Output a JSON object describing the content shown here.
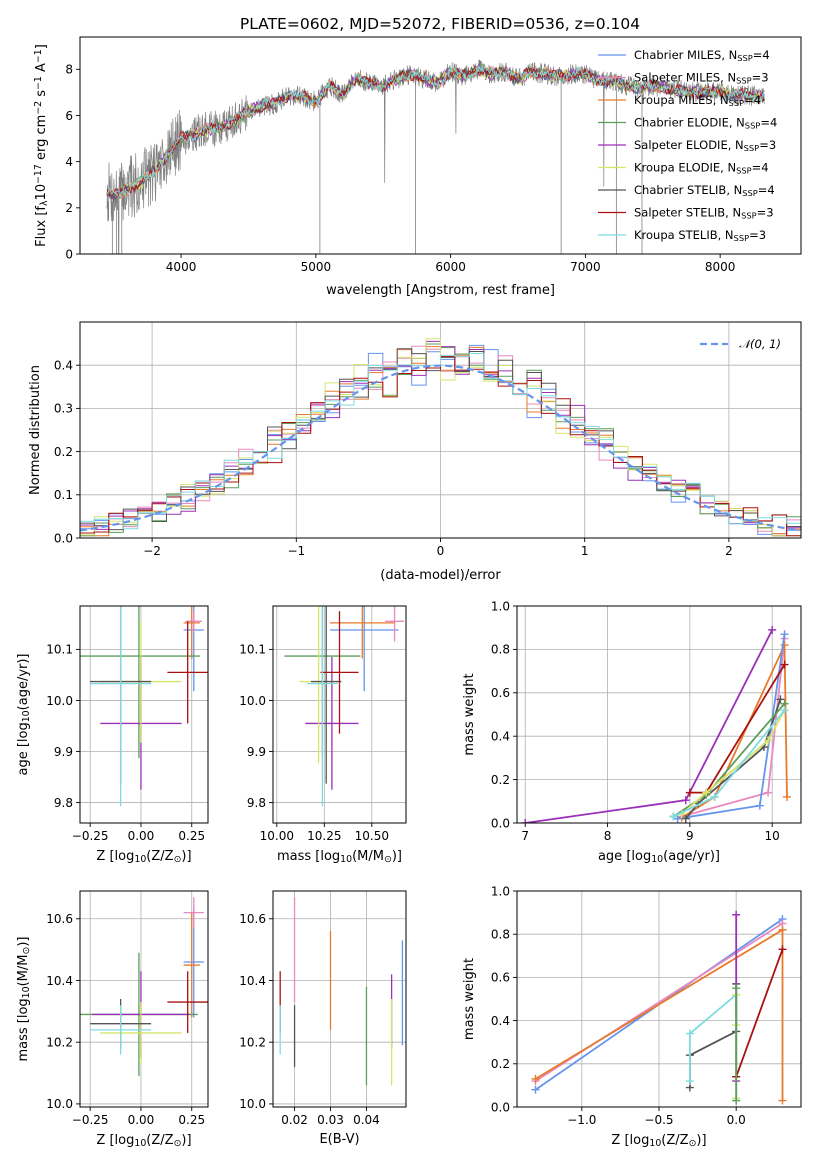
{
  "figure_title": "PLATE=0602, MJD=52072, FIBERID=0536, z=0.104",
  "colors": {
    "cornflower": "#6495ed",
    "darkorange": "#e87a2b",
    "violet": "#9b30b8",
    "khaki": "#d8e36a",
    "darkgray": "#555555",
    "darkred": "#aa1111",
    "cyan": "#7fdbe0",
    "pink": "#e889bf",
    "green": "#5c9e5c"
  },
  "chart_data": [
    {
      "id": "spectrum",
      "type": "line",
      "xlabel": "wavelength [Angstrom, rest frame]",
      "ylabel_main": "Flux [f",
      "ylabel_sub": "λ",
      "ylabel_rest": "10",
      "ylabel_exp": "−17",
      "ylabel_units": " erg cm",
      "ylabel_exp2": "−2",
      "ylabel_units2": " s",
      "ylabel_exp3": "−1",
      "ylabel_units3": " A",
      "ylabel_exp4": "−1",
      "ylabel_close": "]",
      "xlim": [
        3250,
        8600
      ],
      "ylim": [
        0,
        9.4
      ],
      "xticks": [
        4000,
        5000,
        6000,
        7000,
        8000
      ],
      "yticks": [
        0,
        2,
        4,
        6,
        8
      ],
      "legend": [
        {
          "base": "Chabrier MILES, N",
          "sub": "SSP",
          "tail": "=4",
          "color": "#6495ed"
        },
        {
          "base": "Salpeter MILES, N",
          "sub": "SSP",
          "tail": "=3",
          "color": "#e889bf"
        },
        {
          "base": "Kroupa MILES, N",
          "sub": "SSP",
          "tail": "=4",
          "color": "#e87a2b"
        },
        {
          "base": "Chabrier ELODIE, N",
          "sub": "SSP",
          "tail": "=4",
          "color": "#5c9e5c"
        },
        {
          "base": "Salpeter ELODIE, N",
          "sub": "SSP",
          "tail": "=3",
          "color": "#9b30b8"
        },
        {
          "base": "Kroupa ELODIE, N",
          "sub": "SSP",
          "tail": "=4",
          "color": "#d8e36a"
        },
        {
          "base": "Chabrier STELIB, N",
          "sub": "SSP",
          "tail": "=4",
          "color": "#555555"
        },
        {
          "base": "Salpeter STELIB, N",
          "sub": "SSP",
          "tail": "=3",
          "color": "#aa1111"
        },
        {
          "base": "Kroupa STELIB, N",
          "sub": "SSP",
          "tail": "=3",
          "color": "#7fdbe0"
        }
      ],
      "model_curve": {
        "x": [
          3450,
          3500,
          3600,
          3700,
          3800,
          3900,
          4000,
          4100,
          4200,
          4300,
          4400,
          4500,
          4600,
          4700,
          4800,
          4900,
          5000,
          5100,
          5200,
          5300,
          5400,
          5500,
          5600,
          5700,
          5800,
          5900,
          6000,
          6100,
          6200,
          6300,
          6400,
          6500,
          6600,
          6700,
          6800,
          6900,
          7000,
          7100,
          7200,
          7300,
          7400,
          7500,
          7600,
          7700,
          7800,
          7900,
          8000,
          8100,
          8200,
          8300
        ],
        "y": [
          2.7,
          2.5,
          2.8,
          3.1,
          3.6,
          4.3,
          5.0,
          5.2,
          5.4,
          5.5,
          5.8,
          6.2,
          6.4,
          6.5,
          6.9,
          6.8,
          6.6,
          7.3,
          6.9,
          7.6,
          7.4,
          7.3,
          7.6,
          7.8,
          7.6,
          7.4,
          7.9,
          7.7,
          8.0,
          7.8,
          7.9,
          7.6,
          7.9,
          7.8,
          7.7,
          7.8,
          7.8,
          7.5,
          7.5,
          7.3,
          7.2,
          7.3,
          7.2,
          7.1,
          7.0,
          7.0,
          7.0,
          6.9,
          6.9,
          6.8
        ]
      }
    },
    {
      "id": "residuals",
      "type": "step",
      "xlabel": "(data-model)/error",
      "ylabel": "Normed distribution",
      "xlim": [
        -2.5,
        2.5
      ],
      "ylim": [
        0,
        0.5
      ],
      "xticks": [
        -2,
        -1,
        0,
        1,
        2
      ],
      "xtick_labels": [
        "−2",
        "−1",
        "0",
        "1",
        "2"
      ],
      "yticks": [
        0.0,
        0.1,
        0.2,
        0.3,
        0.4
      ],
      "ytick_labels": [
        "0.0",
        "0.1",
        "0.2",
        "0.3",
        "0.4"
      ],
      "bin_width": 0.1,
      "legend_text": "𝒩(0, 1)",
      "gaussian": {
        "mu": 0,
        "sigma": 1,
        "color": "#6495ed"
      }
    },
    {
      "id": "age-vs-Z",
      "type": "errorbar",
      "xlabel": "Z [log",
      "xlabel_sub": "10",
      "xlabel_tail": "(Z/Z",
      "xlabel_sub2": "⊙",
      "xlabel_close": ")]",
      "ylabel": "age  [log",
      "ylabel_sub": "10",
      "ylabel_tail": "(age/yr)]",
      "xlim": [
        -0.3,
        0.33
      ],
      "ylim": [
        9.76,
        10.185
      ],
      "xticks": [
        -0.25,
        0.0,
        0.25
      ],
      "xtick_labels": [
        "−0.25",
        "0.00",
        "0.25"
      ],
      "yticks": [
        9.8,
        9.9,
        10.0,
        10.1
      ],
      "ytick_labels": [
        "9.8",
        "9.9",
        "10.0",
        "10.1"
      ],
      "points": [
        {
          "x": 0.26,
          "y": 10.138,
          "xerr": 0.05,
          "yerr": 0.12,
          "color": "#6495ed"
        },
        {
          "x": 0.26,
          "y": 10.155,
          "xerr": 0.04,
          "yerr": 0.02,
          "color": "#e889bf"
        },
        {
          "x": 0.25,
          "y": 10.152,
          "xerr": 0.04,
          "yerr": 0.07,
          "color": "#e87a2b"
        },
        {
          "x": -0.01,
          "y": 10.087,
          "xerr": 0.3,
          "yerr": 0.2,
          "color": "#5c9e5c"
        },
        {
          "x": 0.0,
          "y": 9.955,
          "xerr": 0.2,
          "yerr": 0.13,
          "color": "#9b30b8"
        },
        {
          "x": 0.0,
          "y": 10.037,
          "xerr": 0.2,
          "yerr": 0.12,
          "color": "#d8e36a"
        },
        {
          "x": -0.1,
          "y": 10.037,
          "xerr": 0.15,
          "yerr": 0.2,
          "color": "#555555"
        },
        {
          "x": 0.23,
          "y": 10.055,
          "xerr": 0.1,
          "yerr": 0.1,
          "color": "#aa1111"
        },
        {
          "x": -0.1,
          "y": 10.033,
          "xerr": 0.15,
          "yerr": 0.24,
          "color": "#7fdbe0"
        }
      ]
    },
    {
      "id": "age-vs-mass",
      "type": "errorbar",
      "xlabel": "mass [log",
      "xlabel_sub": "10",
      "xlabel_tail": "(M/M",
      "xlabel_sub2": "⊙",
      "xlabel_close": ")]",
      "xlim": [
        9.98,
        10.68
      ],
      "ylim": [
        9.76,
        10.185
      ],
      "xticks": [
        10.0,
        10.25,
        10.5
      ],
      "xtick_labels": [
        "10.00",
        "10.25",
        "10.50"
      ],
      "yticks": [
        9.8,
        9.9,
        10.0,
        10.1
      ],
      "ytick_labels": [
        "9.8",
        "9.9",
        "10.0",
        "10.1"
      ],
      "points": [
        {
          "x": 10.46,
          "y": 10.138,
          "xerr": 0.18,
          "yerr": 0.12,
          "color": "#6495ed"
        },
        {
          "x": 10.62,
          "y": 10.155,
          "xerr": 0.05,
          "yerr": 0.04,
          "color": "#e889bf"
        },
        {
          "x": 10.45,
          "y": 10.152,
          "xerr": 0.17,
          "yerr": 0.07,
          "color": "#e87a2b"
        },
        {
          "x": 10.24,
          "y": 10.087,
          "xerr": 0.2,
          "yerr": 0.2,
          "color": "#5c9e5c"
        },
        {
          "x": 10.29,
          "y": 9.955,
          "xerr": 0.14,
          "yerr": 0.13,
          "color": "#9b30b8"
        },
        {
          "x": 10.22,
          "y": 10.037,
          "xerr": 0.1,
          "yerr": 0.16,
          "color": "#d8e36a"
        },
        {
          "x": 10.26,
          "y": 10.037,
          "xerr": 0.08,
          "yerr": 0.2,
          "color": "#555555"
        },
        {
          "x": 10.33,
          "y": 10.055,
          "xerr": 0.1,
          "yerr": 0.12,
          "color": "#aa1111"
        },
        {
          "x": 10.24,
          "y": 10.033,
          "xerr": 0.08,
          "yerr": 0.24,
          "color": "#7fdbe0"
        }
      ]
    },
    {
      "id": "mass-weight-vs-age",
      "type": "line",
      "xlabel": "age  [log",
      "xlabel_sub": "10",
      "xlabel_tail": "(age/yr)]",
      "ylabel": "mass weight",
      "xlim": [
        6.9,
        10.35
      ],
      "ylim": [
        0,
        1.0
      ],
      "xticks": [
        7,
        8,
        9,
        10
      ],
      "yticks": [
        0.0,
        0.2,
        0.4,
        0.6,
        0.8,
        1.0
      ],
      "ytick_labels": [
        "0.0",
        "0.2",
        "0.4",
        "0.6",
        "0.8",
        "1.0"
      ],
      "series": [
        {
          "color": "#9b30b8",
          "x": [
            7.0,
            8.95,
            10.0
          ],
          "y": [
            0.0,
            0.105,
            0.89
          ]
        },
        {
          "color": "#e889bf",
          "x": [
            8.9,
            9.95,
            10.15
          ],
          "y": [
            0.03,
            0.14,
            0.85
          ]
        },
        {
          "color": "#e87a2b",
          "x": [
            8.9,
            9.3,
            10.15,
            10.18
          ],
          "y": [
            0.025,
            0.12,
            0.82,
            0.12
          ]
        },
        {
          "color": "#6495ed",
          "x": [
            8.85,
            9.85,
            10.15
          ],
          "y": [
            0.02,
            0.08,
            0.87
          ]
        },
        {
          "color": "#aa1111",
          "x": [
            9.0,
            9.2,
            10.15
          ],
          "y": [
            0.14,
            0.14,
            0.73
          ]
        },
        {
          "color": "#555555",
          "x": [
            8.95,
            9.1,
            9.9,
            10.1
          ],
          "y": [
            0.02,
            0.09,
            0.35,
            0.57
          ]
        },
        {
          "color": "#5c9e5c",
          "x": [
            8.8,
            9.2,
            10.15
          ],
          "y": [
            0.03,
            0.13,
            0.55
          ]
        },
        {
          "color": "#d8e36a",
          "x": [
            8.9,
            9.2,
            9.95,
            10.15
          ],
          "y": [
            0.04,
            0.14,
            0.38,
            0.52
          ]
        },
        {
          "color": "#7fdbe0",
          "x": [
            8.8,
            9.3,
            10.15
          ],
          "y": [
            0.03,
            0.12,
            0.52
          ]
        }
      ]
    },
    {
      "id": "mass-vs-Z",
      "type": "errorbar",
      "xlabel": "Z [log",
      "xlabel_sub": "10",
      "xlabel_tail": "(Z/Z",
      "xlabel_sub2": "⊙",
      "xlabel_close": ")]",
      "ylabel": "mass [log",
      "ylabel_sub": "10",
      "ylabel_tail": "(M/M",
      "ylabel_sub2": "⊙",
      "ylabel_close": ")]",
      "xlim": [
        -0.3,
        0.33
      ],
      "ylim": [
        9.99,
        10.69
      ],
      "xticks": [
        -0.25,
        0.0,
        0.25
      ],
      "xtick_labels": [
        "−0.25",
        "0.00",
        "0.25"
      ],
      "yticks": [
        10.0,
        10.2,
        10.4,
        10.6
      ],
      "ytick_labels": [
        "10.0",
        "10.2",
        "10.4",
        "10.6"
      ],
      "points": [
        {
          "x": 0.26,
          "y": 10.46,
          "xerr": 0.05,
          "yerr": 0.18,
          "color": "#6495ed"
        },
        {
          "x": 0.26,
          "y": 10.62,
          "xerr": 0.05,
          "yerr": 0.05,
          "color": "#e889bf"
        },
        {
          "x": 0.25,
          "y": 10.45,
          "xerr": 0.04,
          "yerr": 0.17,
          "color": "#e87a2b"
        },
        {
          "x": -0.01,
          "y": 10.29,
          "xerr": 0.29,
          "yerr": 0.2,
          "color": "#5c9e5c"
        },
        {
          "x": 0.0,
          "y": 10.29,
          "xerr": 0.24,
          "yerr": 0.14,
          "color": "#9b30b8"
        },
        {
          "x": 0.0,
          "y": 10.23,
          "xerr": 0.2,
          "yerr": 0.1,
          "color": "#d8e36a"
        },
        {
          "x": -0.1,
          "y": 10.26,
          "xerr": 0.15,
          "yerr": 0.08,
          "color": "#555555"
        },
        {
          "x": 0.23,
          "y": 10.33,
          "xerr": 0.1,
          "yerr": 0.1,
          "color": "#aa1111"
        },
        {
          "x": -0.1,
          "y": 10.24,
          "xerr": 0.15,
          "yerr": 0.08,
          "color": "#7fdbe0"
        }
      ]
    },
    {
      "id": "mass-vs-ebv",
      "type": "errorbar",
      "xlabel": "E(B-V)",
      "xlim": [
        0.014,
        0.051
      ],
      "ylim": [
        9.99,
        10.69
      ],
      "xticks": [
        0.02,
        0.03,
        0.04
      ],
      "xtick_labels": [
        "0.02",
        "0.03",
        "0.04"
      ],
      "yticks": [
        10.0,
        10.2,
        10.4,
        10.6
      ],
      "ytick_labels": [
        "10.0",
        "10.2",
        "10.4",
        "10.6"
      ],
      "points": [
        {
          "x": 0.05,
          "y": 10.36,
          "xerr": 0,
          "yerr": 0.17,
          "color": "#6495ed"
        },
        {
          "x": 0.02,
          "y": 10.5,
          "xerr": 0,
          "yerr": 0.17,
          "color": "#e889bf"
        },
        {
          "x": 0.03,
          "y": 10.4,
          "xerr": 0,
          "yerr": 0.16,
          "color": "#e87a2b"
        },
        {
          "x": 0.04,
          "y": 10.22,
          "xerr": 0,
          "yerr": 0.16,
          "color": "#5c9e5c"
        },
        {
          "x": 0.047,
          "y": 10.3,
          "xerr": 0,
          "yerr": 0.12,
          "color": "#9b30b8"
        },
        {
          "x": 0.047,
          "y": 10.2,
          "xerr": 0,
          "yerr": 0.14,
          "color": "#d8e36a"
        },
        {
          "x": 0.02,
          "y": 10.22,
          "xerr": 0,
          "yerr": 0.1,
          "color": "#555555"
        },
        {
          "x": 0.016,
          "y": 10.33,
          "xerr": 0,
          "yerr": 0.1,
          "color": "#aa1111"
        },
        {
          "x": 0.016,
          "y": 10.24,
          "xerr": 0,
          "yerr": 0.08,
          "color": "#7fdbe0"
        }
      ]
    },
    {
      "id": "mass-weight-vs-Z",
      "type": "line",
      "xlabel": "Z [log",
      "xlabel_sub": "10",
      "xlabel_tail": "(Z/Z",
      "xlabel_sub2": "⊙",
      "xlabel_close": ")]",
      "ylabel": "mass weight",
      "xlim": [
        -1.42,
        0.42
      ],
      "ylim": [
        0,
        1.0
      ],
      "xticks": [
        -1.0,
        -0.5,
        0.0
      ],
      "xtick_labels": [
        "−1.0",
        "−0.5",
        "0.0"
      ],
      "yticks": [
        0.0,
        0.2,
        0.4,
        0.6,
        0.8,
        1.0
      ],
      "ytick_labels": [
        "0.0",
        "0.2",
        "0.4",
        "0.6",
        "0.8",
        "1.0"
      ],
      "series": [
        {
          "color": "#6495ed",
          "x": [
            -1.3,
            0.3
          ],
          "y": [
            0.08,
            0.87
          ]
        },
        {
          "color": "#e889bf",
          "x": [
            -1.3,
            0.3
          ],
          "y": [
            0.12,
            0.85
          ]
        },
        {
          "color": "#e87a2b",
          "x": [
            -1.3,
            0.3,
            0.3
          ],
          "y": [
            0.13,
            0.82,
            0.03
          ]
        },
        {
          "color": "#555555",
          "x": [
            -0.3,
            -0.3,
            0.0,
            0.0
          ],
          "y": [
            0.09,
            0.24,
            0.35,
            0.57
          ]
        },
        {
          "color": "#7fdbe0",
          "x": [
            -0.3,
            -0.3,
            0.0,
            0.0
          ],
          "y": [
            0.12,
            0.34,
            0.52,
            0.03
          ]
        },
        {
          "color": "#9b30b8",
          "x": [
            0.0,
            0.0
          ],
          "y": [
            0.12,
            0.89
          ]
        },
        {
          "color": "#d8e36a",
          "x": [
            0.0,
            0.0,
            0.0
          ],
          "y": [
            0.04,
            0.52,
            0.38
          ]
        },
        {
          "color": "#aa1111",
          "x": [
            0.0,
            0.3
          ],
          "y": [
            0.14,
            0.73
          ]
        },
        {
          "color": "#5c9e5c",
          "x": [
            0.0,
            0.0
          ],
          "y": [
            0.03,
            0.55
          ]
        }
      ]
    }
  ]
}
